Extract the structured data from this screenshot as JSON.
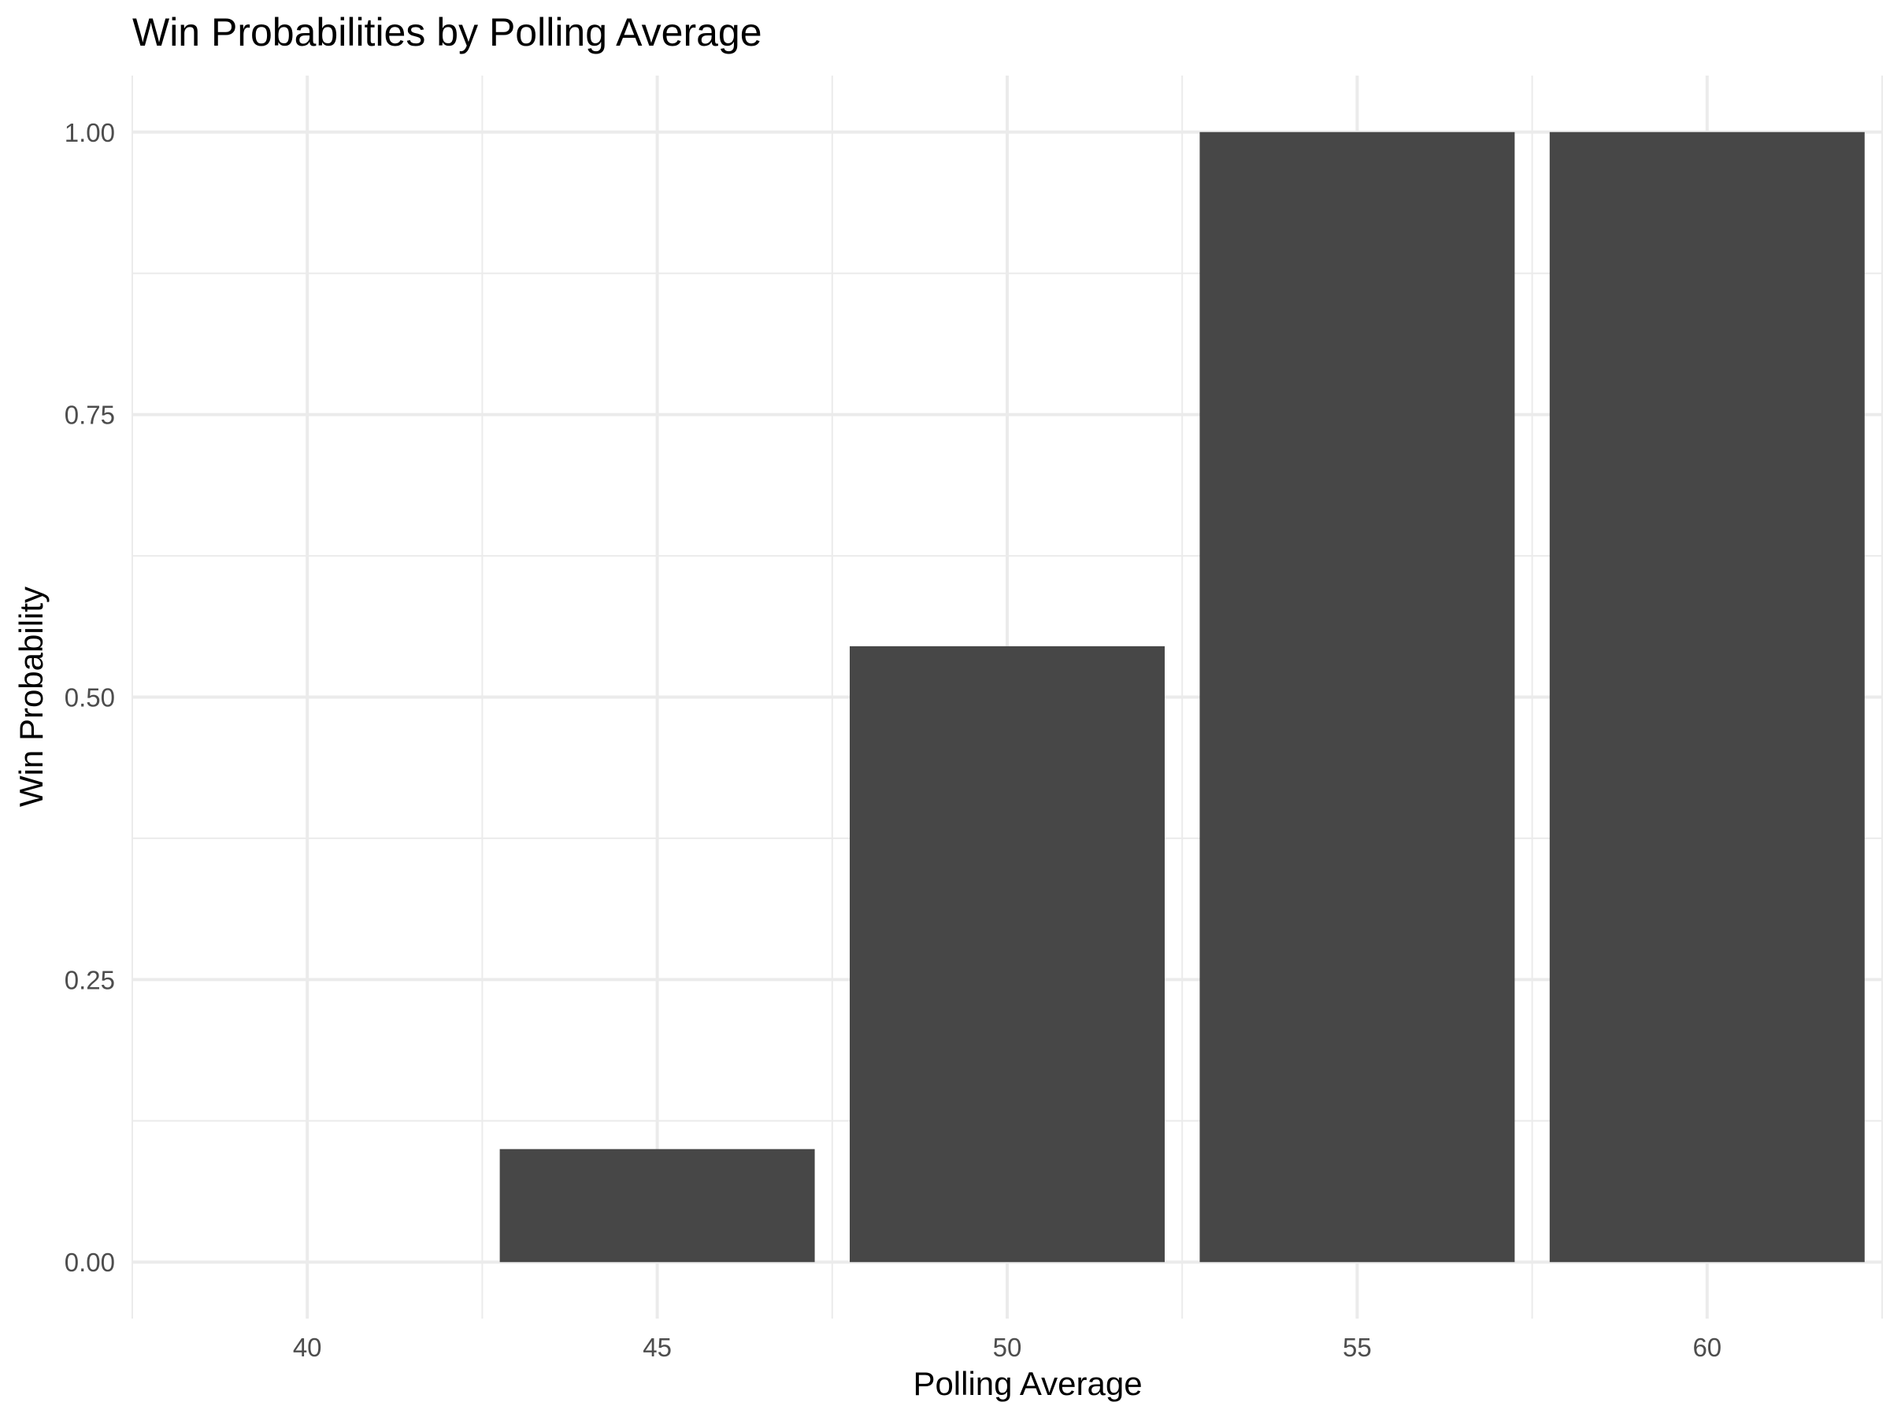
{
  "chart_data": {
    "type": "bar",
    "title": "Win Probabilities by Polling Average",
    "xlabel": "Polling Average",
    "ylabel": "Win Probability",
    "x": [
      40,
      45,
      50,
      55,
      60
    ],
    "values": [
      0.0,
      0.1,
      0.545,
      1.0,
      1.0
    ],
    "xlim": [
      37.5,
      62.5
    ],
    "ylim": [
      -0.05,
      1.05
    ],
    "x_ticks": [
      40,
      45,
      50,
      55,
      60
    ],
    "x_tick_labels": [
      "40",
      "45",
      "50",
      "55",
      "60"
    ],
    "y_ticks": [
      0,
      0.25,
      0.5,
      0.75,
      1
    ],
    "y_tick_labels": [
      "0.00",
      "0.25",
      "0.50",
      "0.75",
      "1.00"
    ],
    "bar_width": 4.5,
    "grid": true,
    "legend": "none",
    "colors": {
      "bar": "#474747",
      "grid": "#ebebeb",
      "tick_text": "#4d4d4d"
    }
  }
}
